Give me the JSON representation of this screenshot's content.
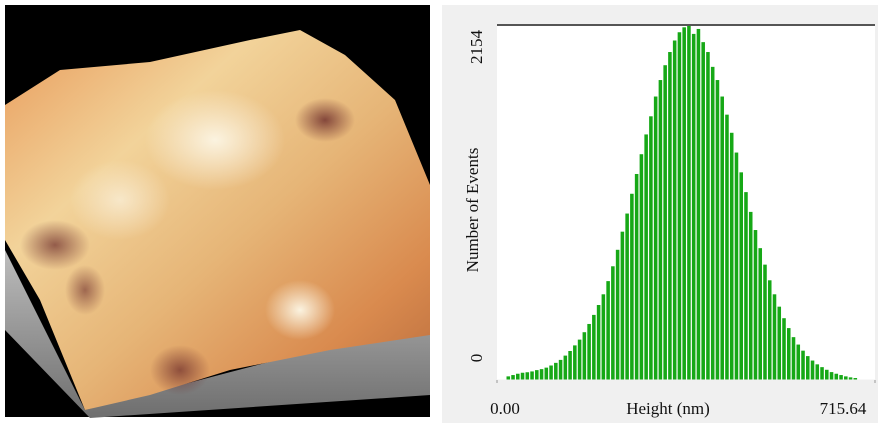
{
  "chart_data": {
    "type": "histogram",
    "xlabel": "Height (nm)",
    "ylabel": "Number of Events",
    "bins": [
      18,
      27,
      36,
      45,
      54,
      63,
      72,
      81,
      90,
      99,
      108,
      117,
      126,
      135,
      144,
      153,
      162,
      171,
      180,
      189,
      198,
      207,
      216,
      225,
      234,
      243,
      252,
      261,
      270,
      279,
      288,
      297,
      306,
      315,
      324,
      333,
      342,
      351,
      360,
      369,
      378,
      387,
      396,
      405,
      414,
      423,
      432,
      441,
      450,
      459,
      468,
      477,
      486,
      495,
      504,
      513,
      522,
      531,
      540,
      549,
      558,
      567,
      576,
      585,
      594,
      603,
      612,
      621,
      630,
      639,
      648,
      657,
      666,
      675,
      684
    ],
    "values": [
      22,
      30,
      38,
      44,
      47,
      52,
      60,
      66,
      75,
      88,
      104,
      122,
      148,
      176,
      210,
      245,
      290,
      340,
      395,
      455,
      520,
      600,
      690,
      790,
      900,
      1010,
      1130,
      1250,
      1370,
      1490,
      1600,
      1720,
      1820,
      1910,
      1990,
      2060,
      2110,
      2140,
      2154,
      2100,
      2130,
      2050,
      1990,
      1900,
      1820,
      1720,
      1610,
      1500,
      1380,
      1260,
      1140,
      1020,
      910,
      800,
      700,
      605,
      520,
      445,
      375,
      315,
      260,
      215,
      178,
      145,
      118,
      95,
      78,
      62,
      48,
      38,
      30,
      22,
      16,
      12
    ],
    "color": "#16a816",
    "xlim": [
      0,
      715.64
    ],
    "xticks": [
      {
        "value": 0,
        "label": "0.00"
      },
      {
        "value": 715.64,
        "label": "715.64"
      }
    ],
    "ylim": [
      0,
      2154
    ],
    "yticks": [
      0,
      2154
    ]
  }
}
